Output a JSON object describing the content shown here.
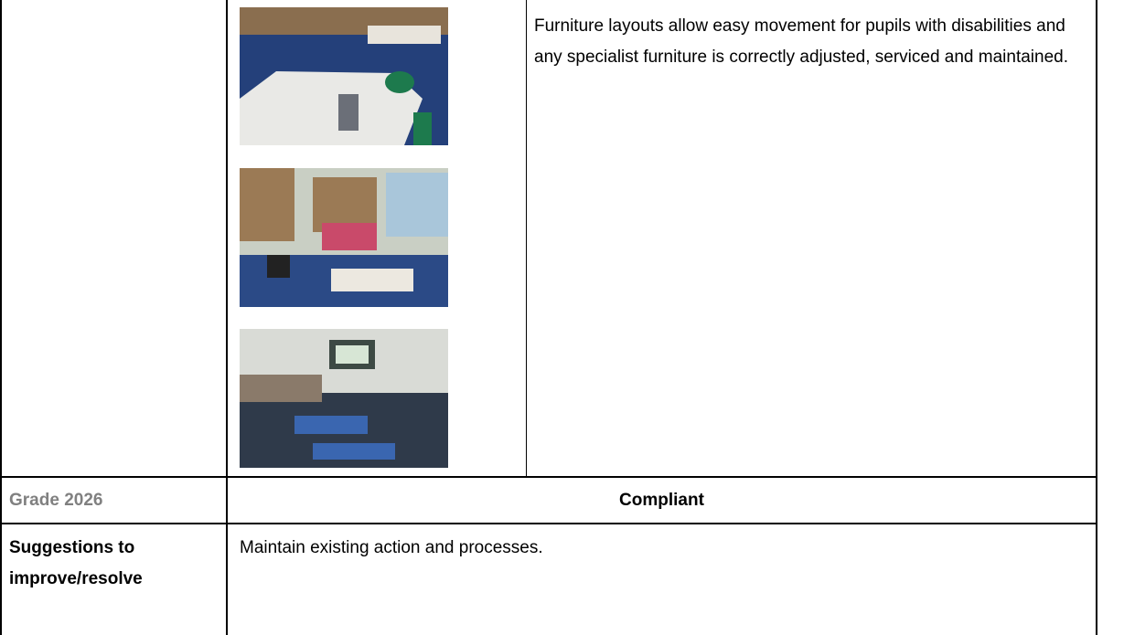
{
  "table": {
    "rows": [
      {
        "description": "Furniture layouts allow easy movement for pupils with disabilities and any specialist furniture is correctly adjusted, serviced and maintained."
      },
      {
        "label": "Grade 2026",
        "value": "Compliant"
      },
      {
        "label": "Suggestions to improve/resolve",
        "value": "Maintain existing action and processes."
      }
    ]
  }
}
